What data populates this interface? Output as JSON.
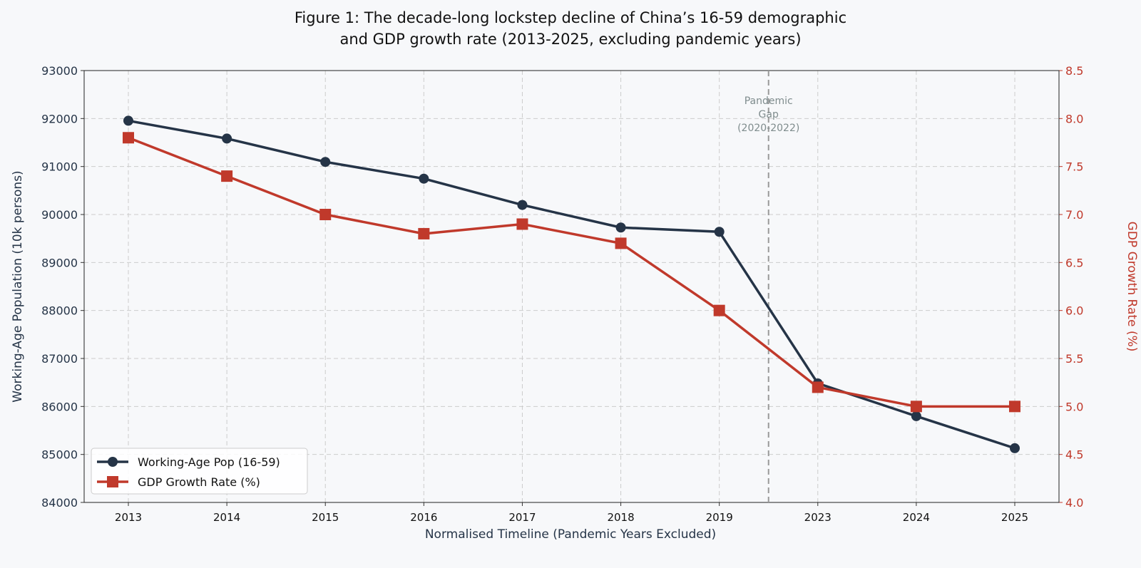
{
  "chart_data": {
    "type": "line",
    "title": "Figure 1: The decade-long lockstep decline of China’s 16-59 demographic and GDP growth rate (2013-2025, excluding pandemic years)",
    "title_lines": [
      "Figure 1: The decade-long lockstep decline of China’s 16-59 demographic",
      "and GDP growth rate (2013-2025, excluding pandemic years)"
    ],
    "xlabel": "Normalised Timeline (Pandemic Years Excluded)",
    "ylabel_left": "Working-Age Population (10k persons)",
    "ylabel_right": "GDP Growth Rate (%)",
    "categories": [
      "2013",
      "2014",
      "2015",
      "2016",
      "2017",
      "2018",
      "2019",
      "2023",
      "2024",
      "2025"
    ],
    "ylim_left": [
      84000,
      93000
    ],
    "yticks_left": [
      "84000",
      "85000",
      "86000",
      "87000",
      "88000",
      "89000",
      "90000",
      "91000",
      "92000",
      "93000"
    ],
    "ylim_right": [
      4.0,
      8.5
    ],
    "yticks_right": [
      "4.0",
      "4.5",
      "5.0",
      "5.5",
      "6.0",
      "6.5",
      "7.0",
      "7.5",
      "8.0",
      "8.5"
    ],
    "grid": true,
    "legend_position": "bottom-left",
    "series": [
      {
        "name": "Working-Age Pop (16-59)",
        "axis": "left",
        "marker": "circle",
        "color": "#253447",
        "values": [
          91954,
          91583,
          91096,
          90747,
          90199,
          89729,
          89640,
          86481,
          85798,
          85130
        ]
      },
      {
        "name": "GDP Growth Rate (%)",
        "axis": "right",
        "marker": "square",
        "color": "#c0392b",
        "values": [
          7.8,
          7.4,
          7.0,
          6.8,
          6.9,
          6.7,
          6.0,
          5.2,
          5.0,
          5.0
        ]
      }
    ],
    "annotation": {
      "lines": [
        "Pandemic",
        "Gap",
        "(2020-2022)"
      ],
      "between": [
        "2019",
        "2023"
      ],
      "color": "#7f8c8d"
    },
    "right_axis_color": "#c0392b",
    "left_axis_color": "#253447"
  }
}
